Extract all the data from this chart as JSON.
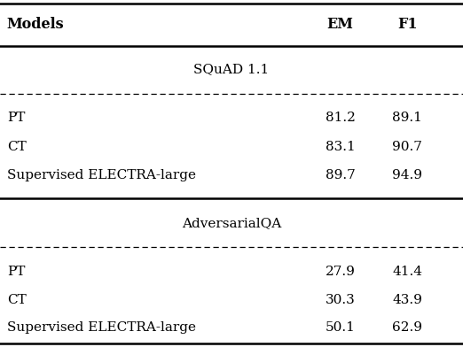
{
  "header": [
    "Models",
    "EM",
    "F1"
  ],
  "section1_title": "SQuAD 1.1",
  "section2_title": "AdversarialQA",
  "rows": [
    [
      "PT",
      "81.2",
      "89.1"
    ],
    [
      "CT",
      "83.1",
      "90.7"
    ],
    [
      "Supervised ELECTRA-large",
      "89.7",
      "94.9"
    ],
    [
      "PT",
      "27.9",
      "41.4"
    ],
    [
      "CT",
      "30.3",
      "43.9"
    ],
    [
      "Supervised ELECTRA-large",
      "50.1",
      "62.9"
    ]
  ],
  "bg_color": "#ffffff",
  "text_color": "#000000",
  "header_fontsize": 11.5,
  "body_fontsize": 11.0,
  "section_fontsize": 11.0,
  "col_model": 0.015,
  "col_em": 0.735,
  "col_f1": 0.88
}
